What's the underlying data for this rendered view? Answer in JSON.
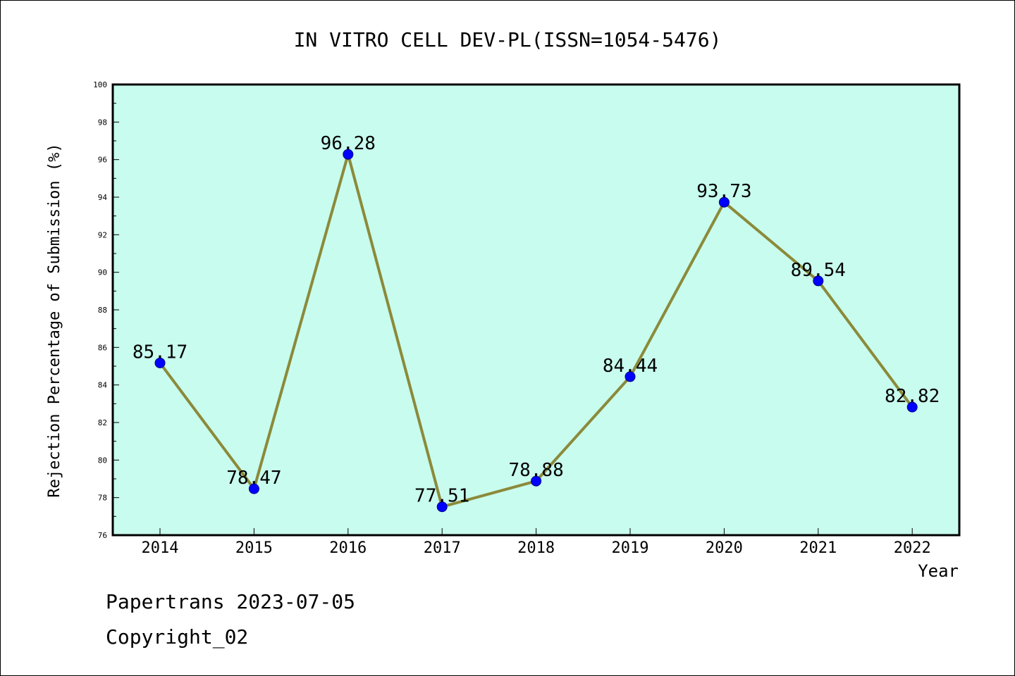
{
  "chart_data": {
    "type": "line",
    "title": "IN VITRO CELL DEV-PL(ISSN=1054-5476)",
    "xlabel": "Year",
    "ylabel": "Rejection Percentage of Submission (%)",
    "categories": [
      "2014",
      "2015",
      "2016",
      "2017",
      "2018",
      "2019",
      "2020",
      "2021",
      "2022"
    ],
    "series": [
      {
        "values": [
          85.17,
          78.47,
          96.28,
          77.51,
          78.88,
          84.44,
          93.73,
          89.54,
          82.82
        ],
        "labels": [
          "85.17",
          "78.47",
          "96.28",
          "77.51",
          "78.88",
          "84.44",
          "93.73",
          "89.54",
          "82.82"
        ]
      }
    ],
    "ylim": [
      76,
      100
    ],
    "yticks": [
      "76",
      "78",
      "80",
      "82",
      "84",
      "86",
      "88",
      "90",
      "92",
      "94",
      "96",
      "98",
      "100"
    ],
    "grid": false,
    "colors": {
      "plot_background": "#c8fcee",
      "line": "#8b8a3a",
      "marker": "#0000ff"
    }
  },
  "footer": {
    "line1": "Papertrans 2023-07-05",
    "line2": "Copyright_02"
  }
}
